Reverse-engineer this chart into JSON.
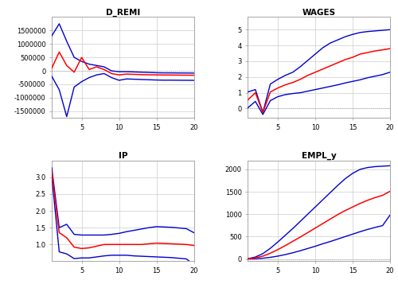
{
  "title_dremi": "D_REMI",
  "title_wages": "WAGES",
  "title_ip": "IP",
  "title_emply": "EMPL_y",
  "n_periods": 20,
  "line_color_center": "#FF0000",
  "line_color_band": "#0000CC",
  "background_color": "#FFFFFF",
  "grid_color": "#CCCCCC",
  "dremi_center": [
    100000,
    700000,
    200000,
    -50000,
    500000,
    50000,
    150000,
    50000,
    -100000,
    -150000,
    -120000,
    -130000,
    -140000,
    -145000,
    -150000,
    -155000,
    -155000,
    -158000,
    -160000,
    -162000
  ],
  "dremi_upper": [
    1300000,
    1750000,
    1100000,
    500000,
    350000,
    250000,
    200000,
    150000,
    0,
    -30000,
    -30000,
    -40000,
    -50000,
    -60000,
    -70000,
    -75000,
    -75000,
    -78000,
    -80000,
    -82000
  ],
  "dremi_lower": [
    -200000,
    -700000,
    -1700000,
    -600000,
    -400000,
    -250000,
    -150000,
    -100000,
    -250000,
    -350000,
    -300000,
    -310000,
    -320000,
    -330000,
    -340000,
    -345000,
    -345000,
    -348000,
    -350000,
    -352000
  ],
  "wages_center": [
    0.55,
    1.0,
    -0.25,
    1.05,
    1.3,
    1.5,
    1.65,
    1.85,
    2.1,
    2.3,
    2.5,
    2.7,
    2.9,
    3.1,
    3.25,
    3.45,
    3.55,
    3.65,
    3.72,
    3.8
  ],
  "wages_upper": [
    1.05,
    1.2,
    -0.25,
    1.55,
    1.85,
    2.1,
    2.3,
    2.65,
    3.05,
    3.45,
    3.85,
    4.15,
    4.35,
    4.55,
    4.7,
    4.82,
    4.88,
    4.92,
    4.96,
    5.0
  ],
  "wages_lower": [
    0.05,
    0.45,
    -0.38,
    0.5,
    0.75,
    0.88,
    0.95,
    1.0,
    1.1,
    1.2,
    1.3,
    1.4,
    1.5,
    1.62,
    1.72,
    1.82,
    1.95,
    2.05,
    2.15,
    2.3
  ],
  "ip_center": [
    3.15,
    1.35,
    1.2,
    0.92,
    0.88,
    0.9,
    0.95,
    1.0,
    1.0,
    1.0,
    1.0,
    1.0,
    1.0,
    1.02,
    1.04,
    1.03,
    1.02,
    1.01,
    1.0,
    0.97
  ],
  "ip_upper": [
    3.28,
    1.5,
    1.6,
    1.3,
    1.28,
    1.28,
    1.28,
    1.28,
    1.3,
    1.33,
    1.38,
    1.42,
    1.46,
    1.5,
    1.53,
    1.52,
    1.51,
    1.49,
    1.47,
    1.35
  ],
  "ip_lower": [
    3.05,
    0.78,
    0.72,
    0.58,
    0.6,
    0.6,
    0.63,
    0.66,
    0.68,
    0.68,
    0.68,
    0.66,
    0.65,
    0.64,
    0.63,
    0.62,
    0.61,
    0.59,
    0.57,
    0.4
  ],
  "emply_center": [
    5,
    25,
    65,
    130,
    210,
    300,
    395,
    490,
    590,
    690,
    790,
    890,
    990,
    1080,
    1160,
    1240,
    1310,
    1370,
    1420,
    1510
  ],
  "emply_upper": [
    8,
    45,
    120,
    240,
    380,
    530,
    680,
    840,
    1000,
    1160,
    1320,
    1480,
    1640,
    1790,
    1910,
    2000,
    2040,
    2060,
    2070,
    2080
  ],
  "emply_lower": [
    2,
    8,
    18,
    38,
    65,
    100,
    140,
    185,
    235,
    285,
    340,
    390,
    445,
    500,
    555,
    610,
    660,
    705,
    745,
    980
  ],
  "dremi_ylim": [
    -1750000,
    2000000
  ],
  "wages_ylim": [
    -0.6,
    5.8
  ],
  "ip_ylim": [
    0.5,
    3.5
  ],
  "emply_ylim": [
    -50,
    2200
  ],
  "dremi_yticks": [
    -1500000,
    -1000000,
    -500000,
    0,
    500000,
    1000000,
    1500000
  ],
  "wages_yticks": [
    0,
    1,
    2,
    3,
    4,
    5
  ],
  "ip_yticks": [
    1.0,
    1.5,
    2.0,
    2.5,
    3.0
  ],
  "emply_yticks": [
    0,
    500,
    1000,
    1500,
    2000
  ],
  "xticks": [
    5,
    10,
    15,
    20
  ]
}
